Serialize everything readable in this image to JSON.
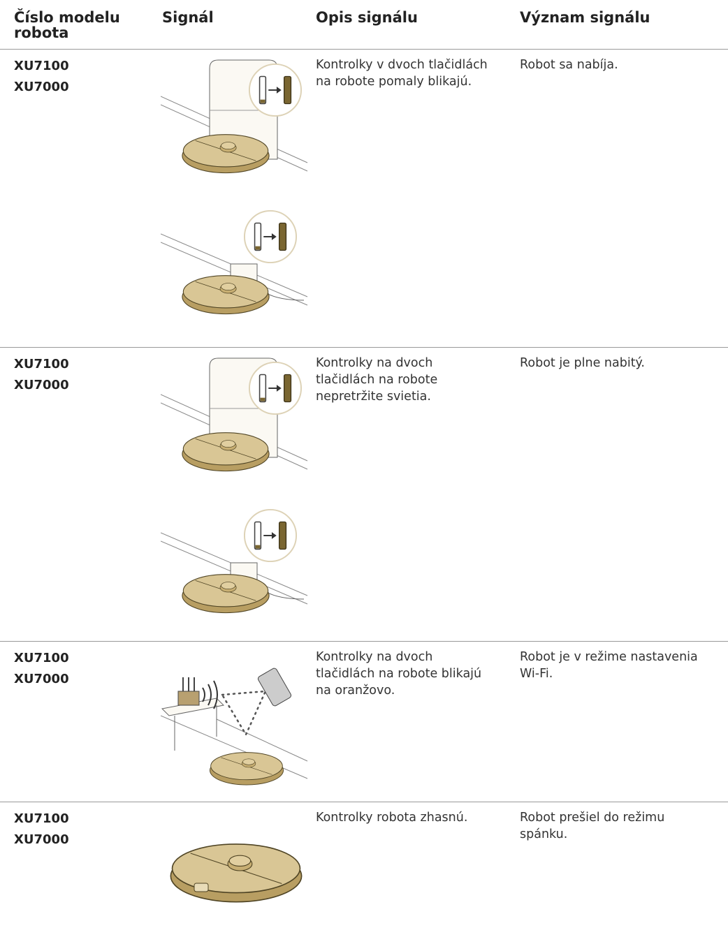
{
  "header": {
    "columns": [
      [
        "Číslo modelu",
        "robota"
      ],
      [
        "Signál"
      ],
      [
        "Opis signálu"
      ],
      [
        "Význam signálu"
      ]
    ]
  },
  "rows": [
    {
      "models": [
        "XU7100",
        "XU7000"
      ],
      "description": [
        "Kontrolky v dvoch tlačidlách",
        "na robote pomaly blikajú."
      ],
      "meaning": [
        "Robot sa nabíja."
      ]
    },
    {
      "models": [
        "XU7100",
        "XU7000"
      ],
      "description": [
        "Kontrolky na dvoch",
        "tlačidlách na robote",
        "nepretržite svietia."
      ],
      "meaning": [
        "Robot je plne nabitý."
      ]
    },
    {
      "models": [
        "XU7100",
        "XU7000"
      ],
      "description": [
        "Kontrolky na dvoch",
        "tlačidlách na robote blikajú",
        "na oranžovo."
      ],
      "meaning": [
        "Robot je v režime nastavenia",
        "Wi-Fi."
      ]
    },
    {
      "models": [
        "XU7100",
        "XU7000"
      ],
      "description": [
        "Kontrolky robota zhasnú."
      ],
      "meaning": [
        "Robot prešiel do režimu",
        "spánku."
      ]
    }
  ]
}
